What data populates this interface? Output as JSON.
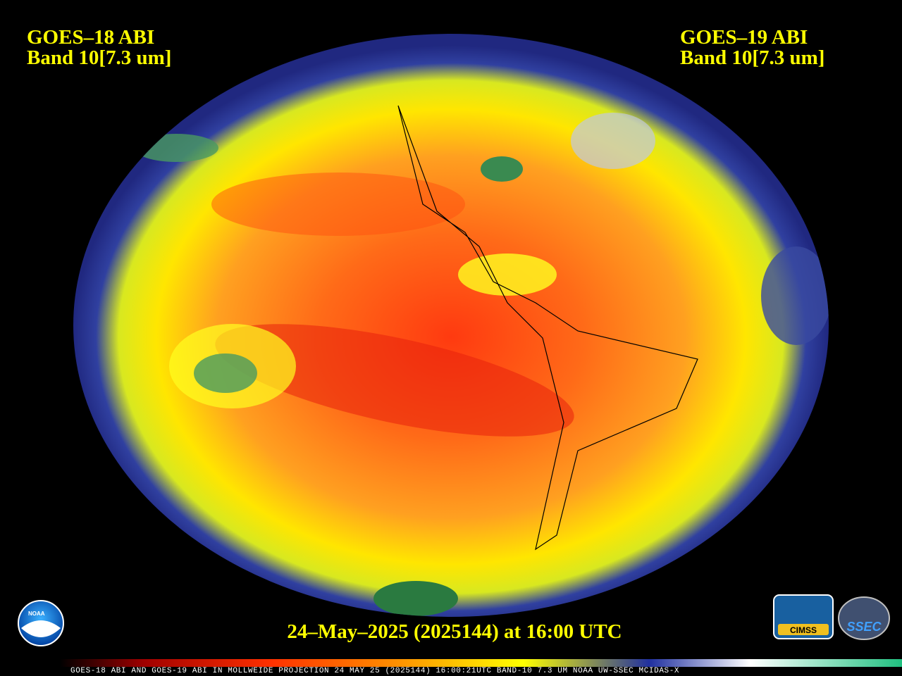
{
  "left_label": {
    "satellite": "GOES–18 ABI",
    "band": "Band 10[7.3 um]"
  },
  "right_label": {
    "satellite": "GOES–19 ABI",
    "band": "Band 10[7.3 um]"
  },
  "timestamp": "24–May–2025 (2025144) at 16:00 UTC",
  "footer": "GOES-18 ABI AND GOES-19 ABI IN MOLLWEIDE PROJECTION 24 MAY 25 (2025144) 16:00:21UTC BAND-10 7.3 UM NOAA UW-SSEC MCIDAS-X",
  "logos": {
    "noaa": "NOAA",
    "cimss": "CIMSS",
    "ssec": "SSEC"
  }
}
